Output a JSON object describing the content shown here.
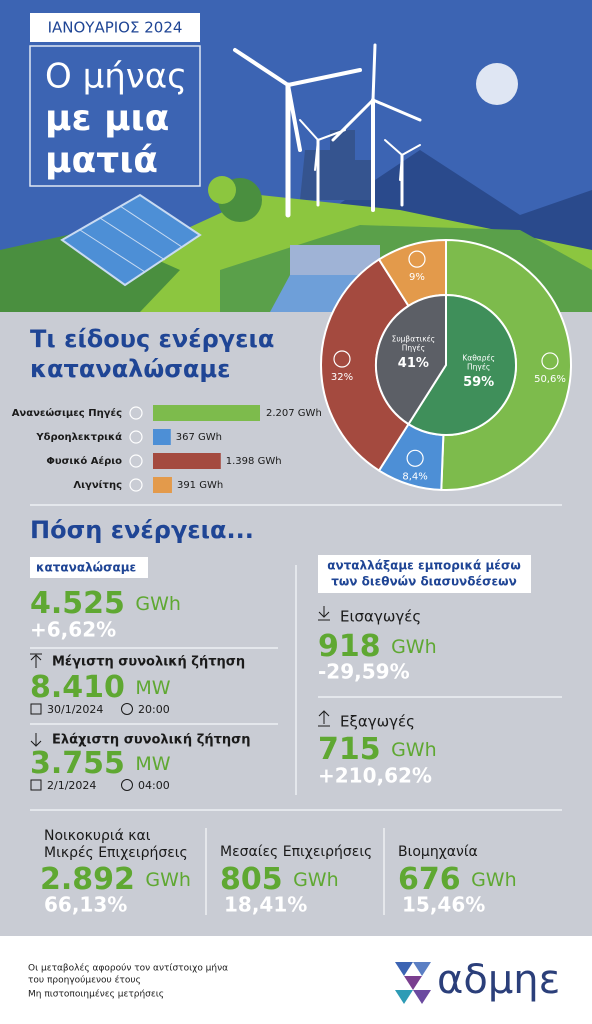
{
  "header": {
    "date": "ΙΑΝΟΥΑΡΙΟΣ 2024",
    "title_lines": [
      "Ο μήνας",
      "με μια",
      "ματιά"
    ]
  },
  "energy_mix": {
    "title_lines": [
      "Τι είδους ενέργεια",
      "καταναλώσαμε"
    ],
    "bars": {
      "type": "bar",
      "categories": [
        "Ανανεώσιμες Πηγές",
        "Υδροηλεκτρικά",
        "Φυσικό Αέριο",
        "Λιγνίτης"
      ],
      "values": [
        2207,
        367,
        1398,
        391
      ],
      "value_labels": [
        "2.207 GWh",
        "367 GWh",
        "1.398 GWh",
        "391 GWh"
      ],
      "colors": [
        "#7dbb4c",
        "#4d8fd6",
        "#a44a3f",
        "#e39a4b"
      ]
    },
    "donut": {
      "type": "pie",
      "outer": {
        "values": [
          50.6,
          8.4,
          32,
          9
        ],
        "value_labels": [
          "50,6%",
          "8,4%",
          "32%",
          "9%"
        ],
        "colors": [
          "#7dbb4c",
          "#4d8fd6",
          "#a44a3f",
          "#e39a4b"
        ]
      },
      "inner": {
        "names": [
          [
            "Καθαρές",
            "Πηγές"
          ],
          [
            "Συμβατικές",
            "Πηγές"
          ]
        ],
        "values": [
          59,
          41
        ],
        "value_labels": [
          "59%",
          "41%"
        ],
        "colors": [
          "#3f8f5a",
          "#5c5f66"
        ]
      }
    }
  },
  "quantity": {
    "title": "Πόση ενέργεια...",
    "consumed": {
      "badge": "καταναλώσαμε",
      "value": "4.525",
      "unit": "GWh",
      "change": "+6,62%"
    },
    "peak": {
      "label": "Μέγιστη συνολική ζήτηση",
      "value": "8.410",
      "unit": "MW",
      "date": "30/1/2024",
      "time": "20:00"
    },
    "min": {
      "label": "Ελάχιστη συνολική ζήτηση",
      "value": "3.755",
      "unit": "MW",
      "date": "2/1/2024",
      "time": "04:00"
    },
    "exchange": {
      "badge_lines": [
        "ανταλλάξαμε εμπορικά μέσω",
        "των διεθνών διασυνδέσεων"
      ],
      "imports": {
        "label": "Εισαγωγές",
        "value": "918",
        "unit": "GWh",
        "change": "-29,59%"
      },
      "exports": {
        "label": "Εξαγωγές",
        "value": "715",
        "unit": "GWh",
        "change": "+210,62%"
      }
    }
  },
  "sectors": [
    {
      "label_lines": [
        "Νοικοκυριά και",
        "Μικρές Επιχειρήσεις"
      ],
      "value": "2.892",
      "unit": "GWh",
      "share": "66,13%"
    },
    {
      "label_lines": [
        "Μεσαίες Επιχειρήσεις"
      ],
      "value": "805",
      "unit": "GWh",
      "share": "18,41%"
    },
    {
      "label_lines": [
        "Βιομηχανία"
      ],
      "value": "676",
      "unit": "GWh",
      "share": "15,46%"
    }
  ],
  "footer": {
    "notes": [
      "Οι μεταβολές αφορούν τον αντίστοιχο μήνα",
      "του προηγούμενου έτους",
      "Μη πιστοποιημένες μετρήσεις"
    ],
    "logo": "αδμηε"
  }
}
